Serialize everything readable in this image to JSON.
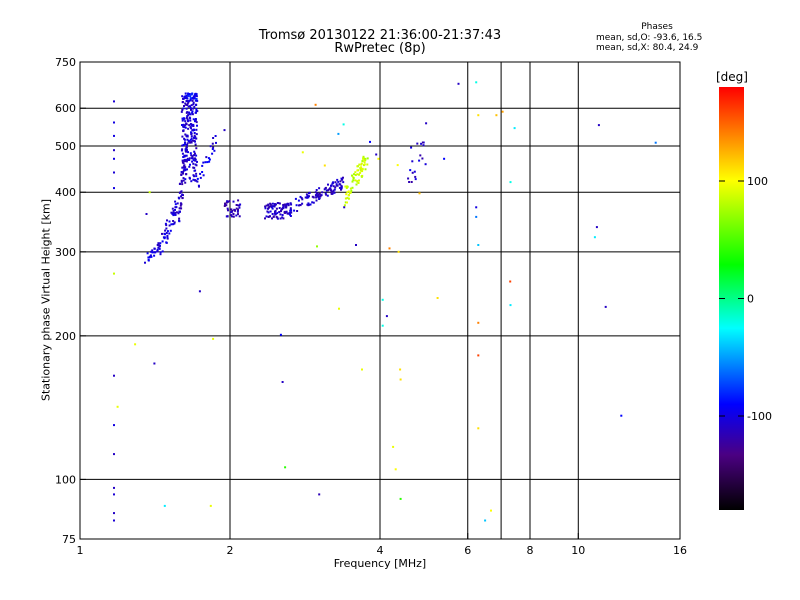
{
  "header": {
    "title_line1": "Tromsø 20130122 21:36:00-21:37:43",
    "title_line2": "RwPretec (8p)"
  },
  "phases": {
    "heading": "Phases",
    "o_line": "mean, sd,O: -93.6, 16.5",
    "x_line": "mean, sd,X: 80.4, 24.9"
  },
  "colorbar": {
    "unit": "[deg]",
    "range": [
      -180,
      180
    ],
    "ticks": [
      {
        "value": 100,
        "label": "100"
      },
      {
        "value": 0,
        "label": "0"
      },
      {
        "value": -100,
        "label": "-100"
      }
    ]
  },
  "chart_data": {
    "type": "scatter",
    "title": "Tromsø 20130122 21:36:00-21:37:43",
    "subtitle": "RwPretec (8p)",
    "xlabel": "Frequency [MHz]",
    "ylabel": "Stationary phase Virtual Height [km]",
    "x_scale": "log",
    "y_scale": "log",
    "xlim": [
      1,
      16
    ],
    "ylim": [
      75,
      750
    ],
    "x_ticks": [
      {
        "value": 1,
        "label": "1"
      },
      {
        "value": 2,
        "label": "2"
      },
      {
        "value": 4,
        "label": "4"
      },
      {
        "value": 6,
        "label": "6"
      },
      {
        "value": 8,
        "label": "8"
      },
      {
        "value": 10,
        "label": "10"
      },
      {
        "value": 16,
        "label": "16"
      }
    ],
    "x_gridlines": [
      2,
      4,
      6,
      7,
      8,
      10
    ],
    "y_ticks": [
      {
        "value": 75,
        "label": "75"
      },
      {
        "value": 100,
        "label": "100"
      },
      {
        "value": 200,
        "label": "200"
      },
      {
        "value": 300,
        "label": "300"
      },
      {
        "value": 400,
        "label": "400"
      },
      {
        "value": 500,
        "label": "500"
      },
      {
        "value": 600,
        "label": "600"
      },
      {
        "value": 750,
        "label": "750"
      }
    ],
    "y_gridlines": [
      100,
      200,
      300,
      400,
      500,
      600
    ],
    "grid": true,
    "color_by": "phase [deg]",
    "clusters": [
      {
        "kind": "band",
        "f_start": 1.35,
        "f_end": 1.45,
        "h_start": 288,
        "h_end": 310,
        "jitter": 8,
        "n": 30,
        "phase": -100
      },
      {
        "kind": "band",
        "f_start": 1.45,
        "f_end": 1.58,
        "h_start": 305,
        "h_end": 380,
        "jitter": 18,
        "n": 50,
        "phase": -105
      },
      {
        "kind": "band",
        "f_start": 1.58,
        "f_end": 1.64,
        "h_start": 380,
        "h_end": 480,
        "jitter": 40,
        "n": 60,
        "phase": -110
      },
      {
        "kind": "box",
        "f_min": 1.6,
        "f_max": 1.72,
        "h_min": 420,
        "h_max": 645,
        "n": 210,
        "phase": -105
      },
      {
        "kind": "box",
        "f_min": 1.62,
        "f_max": 1.72,
        "h_min": 620,
        "h_max": 645,
        "n": 30,
        "phase": -90
      },
      {
        "kind": "band",
        "f_start": 1.72,
        "f_end": 1.88,
        "h_start": 420,
        "h_end": 520,
        "jitter": 20,
        "n": 25,
        "phase": -100
      },
      {
        "kind": "box",
        "f_min": 1.95,
        "f_max": 2.1,
        "h_min": 355,
        "h_max": 385,
        "n": 40,
        "phase": -115
      },
      {
        "kind": "box",
        "f_min": 2.35,
        "f_max": 2.65,
        "h_min": 352,
        "h_max": 380,
        "n": 80,
        "phase": -110
      },
      {
        "kind": "band",
        "f_start": 2.6,
        "f_end": 3.0,
        "h_start": 368,
        "h_end": 395,
        "jitter": 12,
        "n": 50,
        "phase": -105
      },
      {
        "kind": "band",
        "f_start": 3.0,
        "f_end": 3.4,
        "h_start": 395,
        "h_end": 420,
        "jitter": 12,
        "n": 60,
        "phase": -110
      },
      {
        "kind": "band",
        "f_start": 3.4,
        "f_end": 3.78,
        "h_start": 390,
        "h_end": 470,
        "jitter": 20,
        "n": 70,
        "phase": 85
      },
      {
        "kind": "box",
        "f_min": 4.55,
        "f_max": 5.0,
        "h_min": 420,
        "h_max": 510,
        "n": 18,
        "phase": -110
      }
    ],
    "points": [
      {
        "x": 1.17,
        "y": 620,
        "phase": -105
      },
      {
        "x": 1.17,
        "y": 560,
        "phase": -100
      },
      {
        "x": 1.17,
        "y": 525,
        "phase": -100
      },
      {
        "x": 1.17,
        "y": 490,
        "phase": -110
      },
      {
        "x": 1.17,
        "y": 470,
        "phase": -100
      },
      {
        "x": 1.17,
        "y": 440,
        "phase": -105
      },
      {
        "x": 1.17,
        "y": 408,
        "phase": -100
      },
      {
        "x": 1.17,
        "y": 270,
        "phase": 85
      },
      {
        "x": 1.17,
        "y": 165,
        "phase": -110
      },
      {
        "x": 1.17,
        "y": 130,
        "phase": -100
      },
      {
        "x": 1.17,
        "y": 113,
        "phase": -110
      },
      {
        "x": 1.17,
        "y": 96,
        "phase": -110
      },
      {
        "x": 1.17,
        "y": 93,
        "phase": -105
      },
      {
        "x": 1.17,
        "y": 85,
        "phase": -110
      },
      {
        "x": 1.17,
        "y": 82,
        "phase": -105
      },
      {
        "x": 1.19,
        "y": 142,
        "phase": 95
      },
      {
        "x": 1.29,
        "y": 192,
        "phase": 95
      },
      {
        "x": 1.36,
        "y": 360,
        "phase": -110
      },
      {
        "x": 1.38,
        "y": 400,
        "phase": 85
      },
      {
        "x": 1.41,
        "y": 175,
        "phase": -110
      },
      {
        "x": 1.48,
        "y": 88,
        "phase": -30
      },
      {
        "x": 1.74,
        "y": 248,
        "phase": -110
      },
      {
        "x": 1.85,
        "y": 197,
        "phase": 95
      },
      {
        "x": 1.83,
        "y": 88,
        "phase": 95
      },
      {
        "x": 1.95,
        "y": 540,
        "phase": -110
      },
      {
        "x": 2.53,
        "y": 201,
        "phase": -90
      },
      {
        "x": 2.55,
        "y": 160,
        "phase": -110
      },
      {
        "x": 2.58,
        "y": 106,
        "phase": 40
      },
      {
        "x": 2.8,
        "y": 485,
        "phase": 95
      },
      {
        "x": 2.97,
        "y": 610,
        "phase": 140
      },
      {
        "x": 2.99,
        "y": 308,
        "phase": 70
      },
      {
        "x": 3.02,
        "y": 93,
        "phase": -115
      },
      {
        "x": 3.1,
        "y": 455,
        "phase": 110
      },
      {
        "x": 3.3,
        "y": 530,
        "phase": -50
      },
      {
        "x": 3.38,
        "y": 555,
        "phase": -20
      },
      {
        "x": 3.31,
        "y": 228,
        "phase": 95
      },
      {
        "x": 3.39,
        "y": 372,
        "phase": -110
      },
      {
        "x": 3.58,
        "y": 310,
        "phase": -110
      },
      {
        "x": 3.68,
        "y": 170,
        "phase": 95
      },
      {
        "x": 3.82,
        "y": 510,
        "phase": -90
      },
      {
        "x": 3.93,
        "y": 480,
        "phase": -110
      },
      {
        "x": 3.97,
        "y": 470,
        "phase": 100
      },
      {
        "x": 4.05,
        "y": 238,
        "phase": -20
      },
      {
        "x": 4.05,
        "y": 210,
        "phase": -20
      },
      {
        "x": 4.13,
        "y": 220,
        "phase": -110
      },
      {
        "x": 4.18,
        "y": 305,
        "phase": 140
      },
      {
        "x": 4.25,
        "y": 117,
        "phase": 95
      },
      {
        "x": 4.3,
        "y": 105,
        "phase": 100
      },
      {
        "x": 4.34,
        "y": 456,
        "phase": 100
      },
      {
        "x": 4.36,
        "y": 300,
        "phase": 110
      },
      {
        "x": 4.39,
        "y": 170,
        "phase": 110
      },
      {
        "x": 4.4,
        "y": 162,
        "phase": 110
      },
      {
        "x": 4.4,
        "y": 91,
        "phase": 40
      },
      {
        "x": 4.6,
        "y": 445,
        "phase": -90
      },
      {
        "x": 4.8,
        "y": 398,
        "phase": 120
      },
      {
        "x": 4.95,
        "y": 558,
        "phase": -110
      },
      {
        "x": 5.22,
        "y": 240,
        "phase": 110
      },
      {
        "x": 5.38,
        "y": 470,
        "phase": -90
      },
      {
        "x": 5.75,
        "y": 675,
        "phase": -110
      },
      {
        "x": 6.24,
        "y": 680,
        "phase": -20
      },
      {
        "x": 6.24,
        "y": 372,
        "phase": -100
      },
      {
        "x": 6.24,
        "y": 355,
        "phase": -60
      },
      {
        "x": 6.3,
        "y": 580,
        "phase": 110
      },
      {
        "x": 6.3,
        "y": 310,
        "phase": -40
      },
      {
        "x": 6.3,
        "y": 213,
        "phase": 140
      },
      {
        "x": 6.3,
        "y": 182,
        "phase": 160
      },
      {
        "x": 6.3,
        "y": 128,
        "phase": 110
      },
      {
        "x": 6.5,
        "y": 82,
        "phase": -40
      },
      {
        "x": 6.68,
        "y": 86,
        "phase": 100
      },
      {
        "x": 6.85,
        "y": 580,
        "phase": 120
      },
      {
        "x": 7.05,
        "y": 590,
        "phase": 130
      },
      {
        "x": 7.3,
        "y": 260,
        "phase": 160
      },
      {
        "x": 7.31,
        "y": 420,
        "phase": -20
      },
      {
        "x": 7.31,
        "y": 232,
        "phase": -30
      },
      {
        "x": 7.45,
        "y": 545,
        "phase": -30
      },
      {
        "x": 10.8,
        "y": 322,
        "phase": -30
      },
      {
        "x": 10.9,
        "y": 338,
        "phase": -110
      },
      {
        "x": 11.0,
        "y": 553,
        "phase": -110
      },
      {
        "x": 11.35,
        "y": 230,
        "phase": -110
      },
      {
        "x": 12.2,
        "y": 136,
        "phase": -90
      },
      {
        "x": 14.3,
        "y": 508,
        "phase": -60
      }
    ]
  }
}
